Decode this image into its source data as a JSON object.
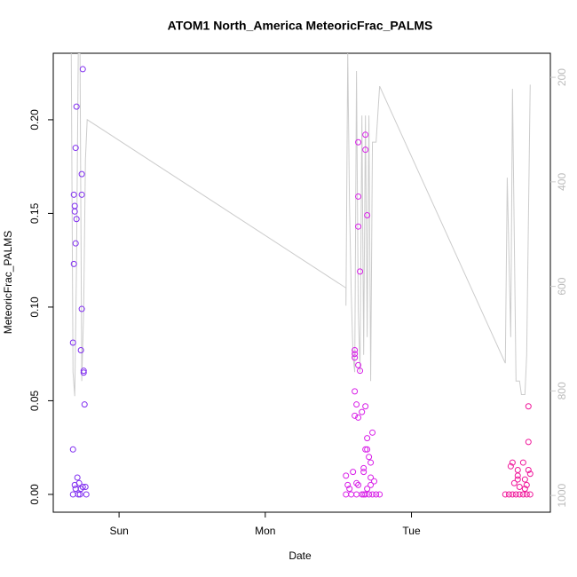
{
  "chart_data": {
    "type": "scatter",
    "title": "ATOM1 North_America MeteoricFrac_PALMS",
    "x_label": "Date",
    "y_label": "MeteoricFrac_PALMS",
    "xlim": [
      -0.45,
      2.95
    ],
    "xticks": [
      {
        "value": 0,
        "label": "Sun"
      },
      {
        "value": 1,
        "label": "Mon"
      },
      {
        "value": 2,
        "label": "Tue"
      }
    ],
    "ylim": [
      -0.0095,
      0.2355
    ],
    "yticks": [
      {
        "value": 0,
        "label": "0.00"
      },
      0.05,
      {
        "value": 0.1,
        "label": "0.10"
      },
      0.15,
      {
        "value": 0.2,
        "label": "0.20"
      }
    ],
    "y2lim": [
      1032,
      154
    ],
    "y2ticks": [
      200,
      400,
      600,
      800,
      1000
    ],
    "series": [
      {
        "color": "#7f2cf0",
        "x": [
          -0.315,
          -0.303,
          -0.285,
          -0.273,
          -0.261,
          -0.248,
          -0.23,
          -0.224,
          -0.279,
          -0.267,
          -0.297,
          -0.315,
          -0.315,
          -0.309,
          -0.309,
          -0.303,
          -0.303,
          -0.297,
          -0.291,
          -0.297,
          -0.291,
          -0.248,
          -0.255,
          -0.255,
          -0.255,
          -0.261,
          -0.242,
          -0.242,
          -0.236
        ],
        "values": [
          0.0,
          0.005,
          0.009,
          0.006,
          0.003,
          0.004,
          0.004,
          0.0,
          0.0,
          0.0,
          0.003,
          0.024,
          0.081,
          0.123,
          0.16,
          0.151,
          0.154,
          0.134,
          0.147,
          0.185,
          0.207,
          0.227,
          0.171,
          0.16,
          0.099,
          0.077,
          0.066,
          0.065,
          0.048
        ]
      },
      {
        "color": "#d81fe8",
        "x": [
          1.552,
          1.564,
          1.576,
          1.588,
          1.6,
          1.612,
          1.612,
          1.612,
          1.612,
          1.624,
          1.612,
          1.636,
          1.648,
          1.636,
          1.661,
          1.636,
          1.636,
          1.636,
          1.648,
          1.685,
          1.685,
          1.697,
          1.685,
          1.673,
          1.673,
          1.685,
          1.697,
          1.697,
          1.709,
          1.733,
          1.721,
          1.721,
          1.709,
          1.733,
          1.758,
          1.782,
          1.685,
          1.661,
          1.624,
          1.636,
          1.697,
          1.721,
          1.745,
          1.552,
          1.624,
          1.673
        ],
        "values": [
          0.01,
          0.005,
          0.003,
          0.0,
          0.012,
          0.073,
          0.075,
          0.077,
          0.055,
          0.048,
          0.042,
          0.069,
          0.066,
          0.041,
          0.044,
          0.188,
          0.159,
          0.143,
          0.119,
          0.192,
          0.184,
          0.149,
          0.047,
          0.014,
          0.012,
          0.024,
          0.024,
          0.03,
          0.02,
          0.033,
          0.017,
          0.009,
          0.0,
          0.0,
          0.0,
          0.0,
          0.0,
          0.0,
          0.006,
          0.005,
          0.003,
          0.005,
          0.007,
          0.0,
          0.0,
          0.0
        ]
      },
      {
        "color": "#f0169a",
        "x": [
          2.642,
          2.667,
          2.691,
          2.715,
          2.739,
          2.764,
          2.788,
          2.812,
          2.679,
          2.691,
          2.703,
          2.727,
          2.727,
          2.727,
          2.739,
          2.764,
          2.776,
          2.788,
          2.8,
          2.8,
          2.8,
          2.812,
          2.776
        ],
        "values": [
          0.0,
          0.0,
          0.0,
          0.0,
          0.0,
          0.0,
          0.0,
          0.0,
          0.015,
          0.017,
          0.006,
          0.013,
          0.01,
          0.008,
          0.004,
          0.017,
          0.003,
          0.005,
          0.028,
          0.047,
          0.013,
          0.011,
          0.008
        ]
      }
    ],
    "line": {
      "type": "line",
      "axis": "y2",
      "color": "#cccccc",
      "x": [
        -0.327,
        -0.315,
        -0.303,
        -0.291,
        -0.279,
        -0.267,
        -0.255,
        -0.242,
        -0.23,
        -0.218,
        1.552,
        1.552,
        1.564,
        1.576,
        1.588,
        1.6,
        1.612,
        1.624,
        1.636,
        1.648,
        1.661,
        1.673,
        1.685,
        1.697,
        1.709,
        1.721,
        1.733,
        1.758,
        1.782,
        2.642,
        2.655,
        2.679,
        2.691,
        2.715,
        2.739,
        2.752,
        2.776,
        2.788,
        2.812
      ],
      "values": [
        154,
        764,
        810,
        561,
        154,
        154,
        781,
        646,
        358,
        281,
        603,
        637,
        154,
        442,
        612,
        731,
        764,
        188,
        646,
        764,
        273,
        731,
        273,
        697,
        273,
        781,
        324,
        324,
        217,
        747,
        392,
        697,
        222,
        781,
        781,
        807,
        807,
        731,
        214
      ]
    }
  }
}
